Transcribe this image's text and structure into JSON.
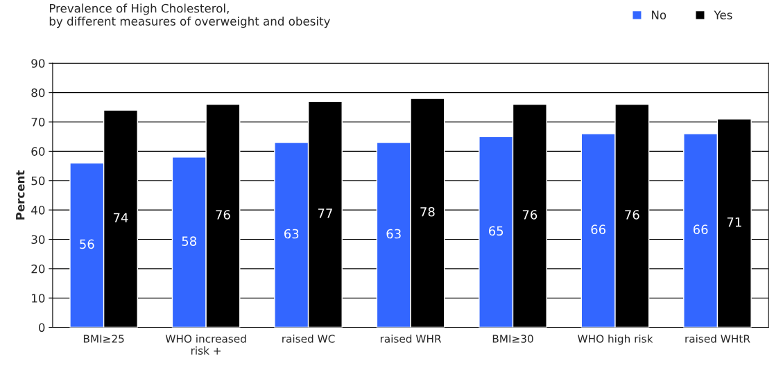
{
  "chart_data": {
    "type": "bar",
    "title": "Prevalence of High Cholesterol,\nby different measures of overweight and obesity",
    "ylabel": "Percent",
    "categories": [
      "BMI≥25",
      "WHO increased\nrisk +",
      "raised WC",
      "raised WHR",
      "BMI≥30",
      "WHO high risk",
      "raised WHtR"
    ],
    "series": [
      {
        "name": "No",
        "color": "#3366ff",
        "values": [
          56,
          58,
          63,
          63,
          65,
          66,
          66
        ]
      },
      {
        "name": "Yes",
        "color": "#000000",
        "values": [
          74,
          76,
          77,
          78,
          76,
          76,
          71
        ]
      }
    ],
    "ylim": [
      0,
      90
    ],
    "yticks": [
      0,
      10,
      20,
      30,
      40,
      50,
      60,
      70,
      80,
      90
    ],
    "grid": "y",
    "legend": "top right",
    "data_labels": true
  }
}
